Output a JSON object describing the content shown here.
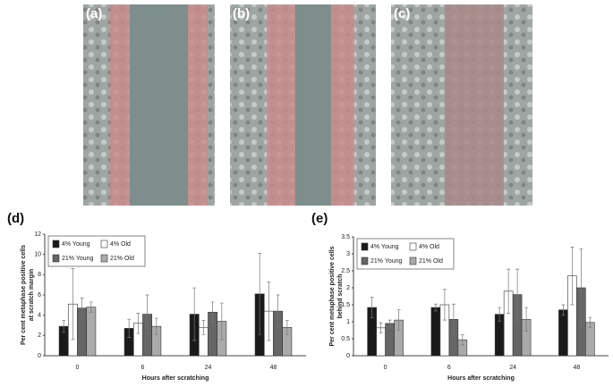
{
  "panels": [
    "(a)",
    "(b)",
    "(c)"
  ],
  "chart_data": [
    {
      "type": "bar",
      "label": "(d)",
      "ylabel": [
        "Per cent metaphase positive cells",
        "at scratch margin"
      ],
      "xlabel": "Hours after scratching",
      "categories": [
        "0",
        "6",
        "24",
        "48"
      ],
      "ylim": [
        0,
        12
      ],
      "yticks": [
        0,
        2,
        4,
        6,
        8,
        10,
        12
      ],
      "legend": "upper left",
      "series": [
        {
          "name": "4% Young",
          "color": "#1a1a1a",
          "values": [
            2.9,
            2.7,
            4.1,
            6.1
          ],
          "errors": [
            0.6,
            0.9,
            2.6,
            4.0
          ]
        },
        {
          "name": "4% Old",
          "color": "#ffffff",
          "values": [
            5.1,
            3.2,
            2.8,
            4.4
          ],
          "errors": [
            3.5,
            1.0,
            0.7,
            2.9
          ]
        },
        {
          "name": "21% Young",
          "color": "#666666",
          "values": [
            4.7,
            4.1,
            4.3,
            4.4
          ],
          "errors": [
            1.0,
            1.9,
            1.0,
            1.6
          ]
        },
        {
          "name": "21% Old",
          "color": "#aaaaaa",
          "values": [
            4.8,
            2.9,
            3.4,
            2.8
          ],
          "errors": [
            0.5,
            0.8,
            1.8,
            0.7
          ]
        }
      ]
    },
    {
      "type": "bar",
      "label": "(e)",
      "ylabel": [
        "Per cent metaphase positive cells",
        "behind scratch"
      ],
      "xlabel": "Hours after scratching",
      "categories": [
        "0",
        "6",
        "24",
        "48"
      ],
      "ylim": [
        0,
        3.5
      ],
      "yticks": [
        0,
        0.5,
        1,
        1.5,
        2,
        2.5,
        3,
        3.5
      ],
      "legend": "upper left",
      "series": [
        {
          "name": "4% Young",
          "color": "#1a1a1a",
          "values": [
            1.42,
            1.42,
            1.22,
            1.35
          ],
          "errors": [
            0.3,
            0.1,
            0.2,
            0.15
          ]
        },
        {
          "name": "4% Old",
          "color": "#ffffff",
          "values": [
            0.82,
            1.5,
            1.9,
            2.35
          ],
          "errors": [
            0.15,
            0.45,
            0.65,
            0.85
          ]
        },
        {
          "name": "21% Young",
          "color": "#666666",
          "values": [
            0.95,
            1.07,
            1.8,
            2.0
          ],
          "errors": [
            0.1,
            0.45,
            0.75,
            1.15
          ]
        },
        {
          "name": "21% Old",
          "color": "#aaaaaa",
          "values": [
            1.05,
            0.47,
            1.07,
            0.98
          ],
          "errors": [
            0.3,
            0.15,
            0.35,
            0.15
          ]
        }
      ]
    }
  ]
}
